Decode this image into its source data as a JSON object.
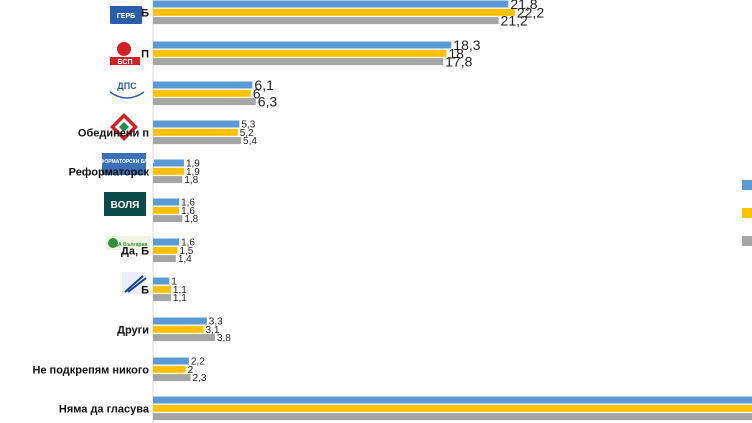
{
  "chart_data": {
    "type": "bar",
    "orientation": "horizontal",
    "categories": [
      "Б",
      "П",
      "",
      "Обединени п",
      "Реформаторск",
      "",
      "Да, Б",
      "Б",
      "Други",
      "Не подкрепям никого",
      "Няма да гласува"
    ],
    "category_icons": [
      "gerb-logo",
      "bsp-logo",
      "dps-logo",
      "obedineni-patrioti-logo",
      "reformatorski-blok-logo",
      "volya-logo",
      "da-bulgaria-logo",
      "party-logo",
      "",
      "",
      ""
    ],
    "logo_texts": [
      "ГЕРБ",
      "БСП",
      "ДПС",
      "",
      "РЕФОРМАТОРСКИ БЛОК",
      "ВОЛЯ",
      "ДА България",
      ""
    ],
    "series": [
      {
        "color": "#5b9bd5",
        "values": [
          21.8,
          18.3,
          6.1,
          5.3,
          1.9,
          1.6,
          1.6,
          1,
          3.3,
          2.2,
          100
        ]
      },
      {
        "color": "#ffc000",
        "values": [
          22.2,
          18,
          6,
          5.2,
          1.9,
          1.6,
          1.5,
          1.1,
          3.1,
          2,
          100
        ]
      },
      {
        "color": "#a5a5a5",
        "values": [
          21.2,
          17.8,
          6.3,
          5.4,
          1.8,
          1.8,
          1.4,
          1.1,
          3.8,
          2.3,
          100
        ]
      }
    ],
    "data_labels": [
      [
        "21,8",
        "22,2",
        "21,2"
      ],
      [
        "18,3",
        "18",
        "17,8"
      ],
      [
        "6,1",
        "6",
        "6,3"
      ],
      [
        "5,3",
        "5,2",
        "5,4"
      ],
      [
        "1,9",
        "1,9",
        "1,8"
      ],
      [
        "1,6",
        "1,6",
        "1,8"
      ],
      [
        "1,6",
        "1,5",
        "1,4"
      ],
      [
        "1",
        "1,1",
        "1,1"
      ],
      [
        "3,3",
        "3,1",
        "3,8"
      ],
      [
        "2,2",
        "2",
        "2,3"
      ],
      [
        "",
        "",
        ""
      ]
    ],
    "legend_placement": "right",
    "grid": false
  }
}
